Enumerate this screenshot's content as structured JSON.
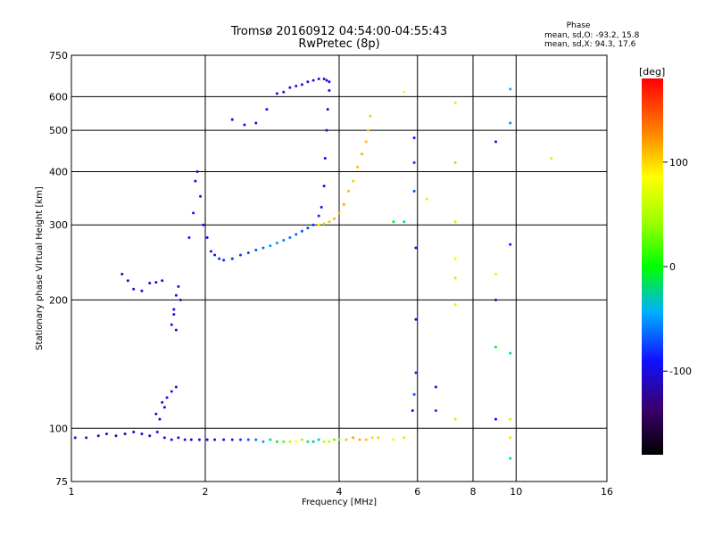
{
  "chart_data": {
    "type": "scatter",
    "title": "Tromsø 20160912 04:54:00-04:55:43",
    "subtitle": "RwPretec (8p)",
    "phase_header": "Phase",
    "phase_stats": [
      "mean, sd,O: -93.2, 15.8",
      "mean, sd,X:  94.3, 17.6"
    ],
    "xlabel": "Frequency [MHz]",
    "ylabel": "Stationary phase Virtual Height [km]",
    "x_scale": "log",
    "y_scale": "log",
    "xlim": [
      1,
      16
    ],
    "ylim": [
      75,
      750
    ],
    "x_ticks": [
      "1",
      "2",
      "4",
      "6",
      "8",
      "10",
      "16"
    ],
    "y_ticks": [
      "75",
      "100",
      "200",
      "300",
      "400",
      "500",
      "600",
      "750"
    ],
    "grid": true,
    "colorbar": {
      "label": "[deg]",
      "range": [
        -180,
        180
      ],
      "tick_labels": [
        "100",
        "0",
        "-100"
      ]
    },
    "series": [
      {
        "x": [
          1.02,
          1.08,
          1.15,
          1.2,
          1.26,
          1.32,
          1.38,
          1.44,
          1.5,
          1.56,
          1.62,
          1.68,
          1.74,
          1.8,
          1.86,
          1.94,
          2.02,
          2.1,
          2.2,
          2.3,
          2.4,
          2.5,
          2.6,
          2.7,
          2.8,
          2.9,
          3.0,
          3.1,
          3.2,
          3.3,
          3.4,
          3.5,
          3.6,
          3.7,
          3.8,
          3.9,
          4.0,
          4.15,
          4.3,
          4.45,
          4.6,
          4.75,
          4.9,
          5.3,
          5.6
        ],
        "y": [
          95,
          95,
          96,
          97,
          96,
          97,
          98,
          97,
          96,
          98,
          95,
          94,
          95,
          94,
          94,
          94,
          94,
          94,
          94,
          94,
          94,
          94,
          94,
          93,
          94,
          93,
          93,
          93,
          93,
          94,
          93,
          93,
          94,
          93,
          93,
          94,
          94,
          94,
          95,
          94,
          94,
          95,
          95,
          94,
          95
        ],
        "phase": [
          -110,
          -115,
          -112,
          -108,
          -120,
          -118,
          -115,
          -110,
          -108,
          -104,
          -100,
          -106,
          -110,
          -110,
          -112,
          -110,
          -108,
          -104,
          -100,
          -96,
          -90,
          -80,
          -70,
          -55,
          -30,
          -10,
          20,
          60,
          90,
          40,
          -10,
          -40,
          -30,
          50,
          60,
          30,
          40,
          110,
          120,
          115,
          110,
          100,
          105,
          95,
          100
        ]
      },
      {
        "x": [
          1.3,
          1.34,
          1.38,
          1.44,
          1.5,
          1.55,
          1.6
        ],
        "y": [
          230,
          222,
          212,
          210,
          219,
          220,
          222
        ],
        "phase": [
          -115,
          -112,
          -110,
          -108,
          -106,
          -110,
          -112
        ]
      },
      {
        "x": [
          1.68,
          1.7,
          1.72,
          1.74,
          1.76,
          1.7,
          1.72
        ],
        "y": [
          175,
          190,
          205,
          215,
          200,
          185,
          170
        ],
        "phase": [
          -104,
          -108,
          -110,
          -112,
          -106,
          -102,
          -110
        ]
      },
      {
        "x": [
          1.55,
          1.6,
          1.64,
          1.68,
          1.72,
          1.62,
          1.58
        ],
        "y": [
          108,
          115,
          118,
          122,
          125,
          112,
          105
        ],
        "phase": [
          -108,
          -112,
          -106,
          -110,
          -104,
          -108,
          -110
        ]
      },
      {
        "x": [
          1.84,
          1.88,
          1.9,
          1.92,
          1.95,
          1.98,
          2.02,
          2.06,
          2.1,
          2.15,
          2.2,
          2.3,
          2.4,
          2.5,
          2.6,
          2.7,
          2.8,
          2.9,
          3.0,
          3.1,
          3.2,
          3.3,
          3.4,
          3.5,
          3.6,
          3.65,
          3.7,
          3.72,
          3.75,
          3.77,
          3.8
        ],
        "y": [
          280,
          320,
          380,
          400,
          350,
          300,
          280,
          260,
          255,
          250,
          248,
          250,
          255,
          258,
          262,
          265,
          268,
          272,
          276,
          280,
          285,
          290,
          295,
          300,
          315,
          330,
          370,
          430,
          500,
          560,
          620
        ],
        "phase": [
          -105,
          -108,
          -112,
          -110,
          -106,
          -104,
          -102,
          -100,
          -98,
          -96,
          -94,
          -92,
          -90,
          -85,
          -80,
          -70,
          -60,
          -60,
          -65,
          -70,
          -75,
          -80,
          -85,
          -90,
          -95,
          -100,
          -104,
          -108,
          -110,
          -112,
          -115
        ]
      },
      {
        "x": [
          2.3,
          2.45,
          2.6,
          2.75,
          2.9,
          3.0,
          3.1,
          3.2,
          3.3,
          3.4,
          3.5,
          3.6,
          3.7,
          3.75,
          3.8
        ],
        "y": [
          530,
          515,
          520,
          560,
          610,
          615,
          630,
          635,
          640,
          650,
          655,
          660,
          660,
          655,
          650
        ],
        "phase": [
          -110,
          -112,
          -108,
          -106,
          -104,
          -102,
          -106,
          -108,
          -110,
          -104,
          -106,
          -108,
          -110,
          -112,
          -108
        ]
      },
      {
        "x": [
          3.6,
          3.7,
          3.8,
          3.9,
          4.0,
          4.1,
          4.2,
          4.3,
          4.4,
          4.5,
          4.6,
          4.65,
          4.7
        ],
        "y": [
          300,
          302,
          305,
          310,
          320,
          335,
          360,
          380,
          410,
          440,
          470,
          500,
          540
        ],
        "phase": [
          100,
          105,
          110,
          112,
          115,
          118,
          110,
          108,
          112,
          115,
          110,
          108,
          105
        ]
      },
      {
        "x": [
          5.9,
          5.9,
          5.9,
          5.95,
          5.95,
          5.95,
          5.9,
          5.85,
          6.6,
          6.6,
          7.3,
          7.3,
          7.3,
          7.3,
          7.3,
          7.3,
          7.3,
          9.0,
          9.0,
          9.0,
          9.0,
          9.0,
          9.7,
          9.7,
          9.7,
          9.7,
          9.7,
          9.7,
          9.7,
          12.0,
          6.3,
          5.6,
          5.6,
          5.3
        ],
        "y": [
          480,
          420,
          360,
          265,
          180,
          135,
          120,
          110,
          125,
          110,
          580,
          420,
          305,
          250,
          225,
          195,
          105,
          470,
          230,
          200,
          155,
          105,
          625,
          520,
          270,
          150,
          105,
          95,
          85,
          430,
          345,
          615,
          305,
          305
        ],
        "phase": [
          -100,
          -90,
          -80,
          -100,
          -110,
          -90,
          -80,
          -100,
          -100,
          -90,
          60,
          40,
          60,
          80,
          50,
          70,
          60,
          -110,
          70,
          -120,
          -10,
          -100,
          -50,
          -60,
          -100,
          -20,
          60,
          100,
          -20,
          60,
          60,
          80,
          -20,
          -10
        ]
      }
    ]
  }
}
